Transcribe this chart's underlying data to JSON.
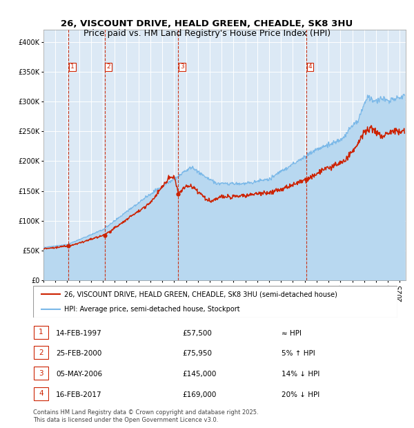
{
  "title": "26, VISCOUNT DRIVE, HEALD GREEN, CHEADLE, SK8 3HU",
  "subtitle": "Price paid vs. HM Land Registry's House Price Index (HPI)",
  "ylim": [
    0,
    420000
  ],
  "yticks": [
    0,
    50000,
    100000,
    150000,
    200000,
    250000,
    300000,
    350000,
    400000
  ],
  "ytick_labels": [
    "£0",
    "£50K",
    "£100K",
    "£150K",
    "£200K",
    "£250K",
    "£300K",
    "£350K",
    "£400K"
  ],
  "xlim_start": 1995.0,
  "xlim_end": 2025.5,
  "plot_bg_color": "#dce9f5",
  "grid_color": "#ffffff",
  "hpi_line_color": "#7ab8e8",
  "hpi_fill_color": "#b8d8f0",
  "price_line_color": "#cc2200",
  "vline_color": "#cc2200",
  "sale_marker_color": "#cc2200",
  "purchases": [
    {
      "date_num": 1997.12,
      "price": 57500,
      "label": "1"
    },
    {
      "date_num": 2000.15,
      "price": 75950,
      "label": "2"
    },
    {
      "date_num": 2006.35,
      "price": 145000,
      "label": "3"
    },
    {
      "date_num": 2017.12,
      "price": 169000,
      "label": "4"
    }
  ],
  "legend_entries": [
    "26, VISCOUNT DRIVE, HEALD GREEN, CHEADLE, SK8 3HU (semi-detached house)",
    "HPI: Average price, semi-detached house, Stockport"
  ],
  "table_rows": [
    {
      "num": "1",
      "date": "14-FEB-1997",
      "price": "£57,500",
      "rel": "≈ HPI"
    },
    {
      "num": "2",
      "date": "25-FEB-2000",
      "price": "£75,950",
      "rel": "5% ↑ HPI"
    },
    {
      "num": "3",
      "date": "05-MAY-2006",
      "price": "£145,000",
      "rel": "14% ↓ HPI"
    },
    {
      "num": "4",
      "date": "16-FEB-2017",
      "price": "£169,000",
      "rel": "20% ↓ HPI"
    }
  ],
  "footnote": "Contains HM Land Registry data © Crown copyright and database right 2025.\nThis data is licensed under the Open Government Licence v3.0.",
  "title_fontsize": 9.5,
  "tick_fontsize": 7,
  "legend_fontsize": 7,
  "table_fontsize": 7.5,
  "footnote_fontsize": 6
}
